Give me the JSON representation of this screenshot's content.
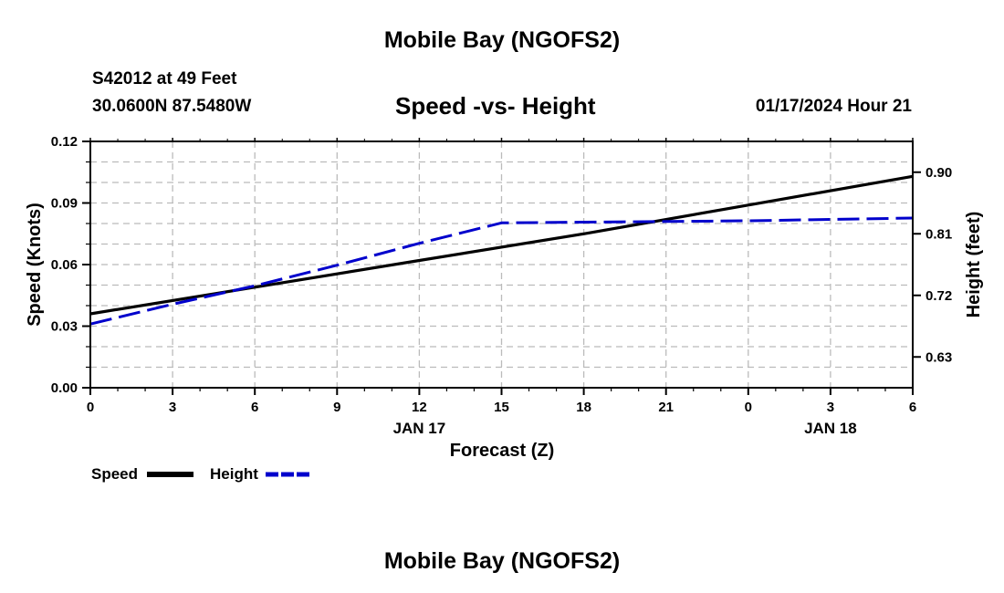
{
  "header": {
    "title": "Mobile Bay (NGOFS2)",
    "station": "S42012 at 49 Feet",
    "coords": "30.0600N  87.5480W",
    "subtitle": "Speed -vs- Height",
    "timestamp": "01/17/2024 Hour 21"
  },
  "footer": {
    "title": "Mobile Bay (NGOFS2)"
  },
  "legend": {
    "speed_label": "Speed",
    "height_label": "Height"
  },
  "colors": {
    "speed": "#000000",
    "height": "#0000cc",
    "grid": "#bbbbbb"
  },
  "chart_data": {
    "type": "line",
    "title": "Speed -vs- Height",
    "xlabel": "Forecast (Z)",
    "ylabel": "Speed (Knots)",
    "ylabel_right": "Height (feet)",
    "x_tick_labels": [
      "0",
      "3",
      "6",
      "9",
      "12",
      "15",
      "18",
      "21",
      "0",
      "3",
      "6"
    ],
    "x_date_labels": [
      {
        "at_tick": 4,
        "label": "JAN 17"
      },
      {
        "at_tick": 9,
        "label": "JAN 18"
      }
    ],
    "xlim": [
      0,
      30
    ],
    "ylim": [
      0,
      0.12
    ],
    "y_tick_labels": [
      "0.00",
      "0.03",
      "0.06",
      "0.09",
      "0.12"
    ],
    "y_ticks": [
      0,
      0.03,
      0.06,
      0.09,
      0.12
    ],
    "y2lim": [
      0.585,
      0.945
    ],
    "y2_tick_labels": [
      "0.63",
      "0.72",
      "0.81",
      "0.90"
    ],
    "y2_ticks": [
      0.63,
      0.72,
      0.81,
      0.9
    ],
    "grid": true,
    "legend_position": "bottom-left",
    "series": [
      {
        "name": "Speed",
        "axis": "left",
        "style": "solid",
        "x": [
          0,
          6,
          12,
          18,
          24,
          30
        ],
        "y": [
          0.036,
          0.049,
          0.062,
          0.075,
          0.089,
          0.103
        ]
      },
      {
        "name": "Height",
        "axis": "right",
        "style": "dashed",
        "x": [
          0,
          3,
          6,
          9,
          12,
          15,
          18,
          21,
          24,
          27,
          30
        ],
        "y": [
          0.678,
          0.707,
          0.734,
          0.764,
          0.796,
          0.826,
          0.827,
          0.828,
          0.829,
          0.831,
          0.833
        ]
      }
    ]
  }
}
